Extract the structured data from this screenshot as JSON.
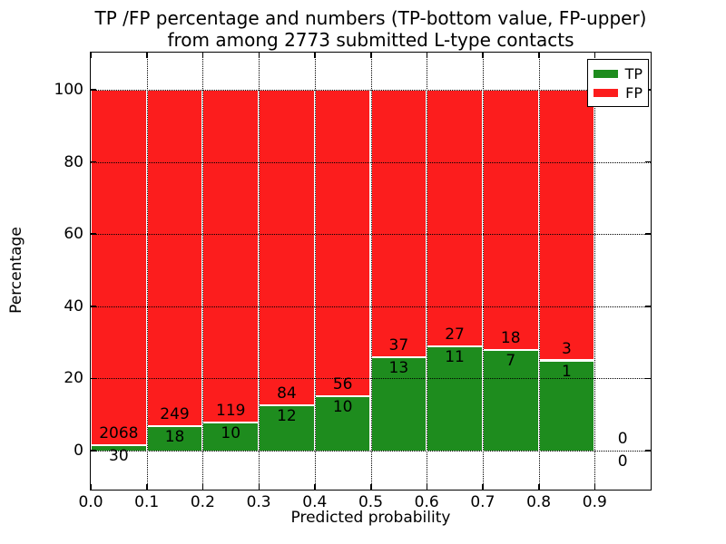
{
  "title": {
    "line1": "TP /FP percentage and numbers (TP-bottom value, FP-upper)",
    "line2": "from among 2773 submitted L-type contacts"
  },
  "axes": {
    "xlabel": "Predicted probability",
    "ylabel": "Percentage"
  },
  "legend": {
    "items": [
      {
        "label": "TP",
        "color": "#1e8c1e"
      },
      {
        "label": "FP",
        "color": "#fc1d1d"
      }
    ]
  },
  "chart_data": {
    "type": "bar",
    "stacked": true,
    "title": "TP /FP percentage and numbers (TP-bottom value, FP-upper) from among 2773 submitted L-type contacts",
    "xlabel": "Predicted probability",
    "ylabel": "Percentage",
    "total_submitted_contacts": 2773,
    "bar_value_rule": "TP count printed below the TP/FP boundary, FP count printed above it; bar heights are TP/(TP+FP) and FP/(TP+FP) in percent, stacking to 100",
    "x_tick_labels": [
      "0.0",
      "0.1",
      "0.2",
      "0.3",
      "0.4",
      "0.5",
      "0.6",
      "0.7",
      "0.8",
      "0.9"
    ],
    "y_ticks": [
      0,
      20,
      40,
      60,
      80,
      100
    ],
    "xlim": [
      0,
      1.0
    ],
    "ylim": [
      -10.8,
      110.3
    ],
    "bin_width": 0.1,
    "grid": {
      "style": "dotted",
      "color": "#000000",
      "vertical_at": [
        0.1,
        0.2,
        0.3,
        0.4,
        0.5,
        0.6,
        0.7,
        0.8,
        0.9
      ]
    },
    "legend_position": "upper right",
    "series": [
      {
        "name": "TP",
        "color": "#1e8c1e"
      },
      {
        "name": "FP",
        "color": "#fc1d1d"
      }
    ],
    "bins": [
      {
        "x_start": 0.0,
        "tp": 30,
        "fp": 2068
      },
      {
        "x_start": 0.1,
        "tp": 18,
        "fp": 249
      },
      {
        "x_start": 0.2,
        "tp": 10,
        "fp": 119
      },
      {
        "x_start": 0.3,
        "tp": 12,
        "fp": 84
      },
      {
        "x_start": 0.4,
        "tp": 10,
        "fp": 56
      },
      {
        "x_start": 0.5,
        "tp": 13,
        "fp": 37
      },
      {
        "x_start": 0.6,
        "tp": 11,
        "fp": 27
      },
      {
        "x_start": 0.7,
        "tp": 7,
        "fp": 18
      },
      {
        "x_start": 0.8,
        "tp": 1,
        "fp": 3
      },
      {
        "x_start": 0.9,
        "tp": 0,
        "fp": 0
      }
    ]
  }
}
